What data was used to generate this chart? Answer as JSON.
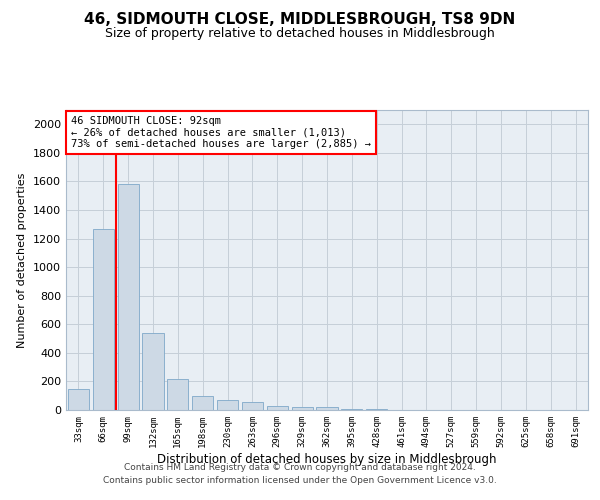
{
  "title": "46, SIDMOUTH CLOSE, MIDDLESBROUGH, TS8 9DN",
  "subtitle": "Size of property relative to detached houses in Middlesbrough",
  "xlabel": "Distribution of detached houses by size in Middlesbrough",
  "ylabel": "Number of detached properties",
  "footer_line1": "Contains HM Land Registry data © Crown copyright and database right 2024.",
  "footer_line2": "Contains public sector information licensed under the Open Government Licence v3.0.",
  "categories": [
    "33sqm",
    "66sqm",
    "99sqm",
    "132sqm",
    "165sqm",
    "198sqm",
    "230sqm",
    "263sqm",
    "296sqm",
    "329sqm",
    "362sqm",
    "395sqm",
    "428sqm",
    "461sqm",
    "494sqm",
    "527sqm",
    "559sqm",
    "592sqm",
    "625sqm",
    "658sqm",
    "691sqm"
  ],
  "values": [
    150,
    1270,
    1580,
    540,
    220,
    100,
    70,
    55,
    30,
    20,
    20,
    5,
    5,
    0,
    0,
    0,
    0,
    0,
    0,
    0,
    0
  ],
  "bar_color": "#cdd9e5",
  "bar_edge_color": "#7fa8c9",
  "ylim": [
    0,
    2100
  ],
  "yticks": [
    0,
    200,
    400,
    600,
    800,
    1000,
    1200,
    1400,
    1600,
    1800,
    2000
  ],
  "property_address": "46 SIDMOUTH CLOSE: 92sqm",
  "annotation_line1": "← 26% of detached houses are smaller (1,013)",
  "annotation_line2": "73% of semi-detached houses are larger (2,885) →",
  "box_color": "red",
  "vline_color": "red",
  "vline_x": 2.0,
  "background_color": "#e8eef4",
  "grid_color": "#c5cfd8",
  "title_fontsize": 11,
  "subtitle_fontsize": 9
}
